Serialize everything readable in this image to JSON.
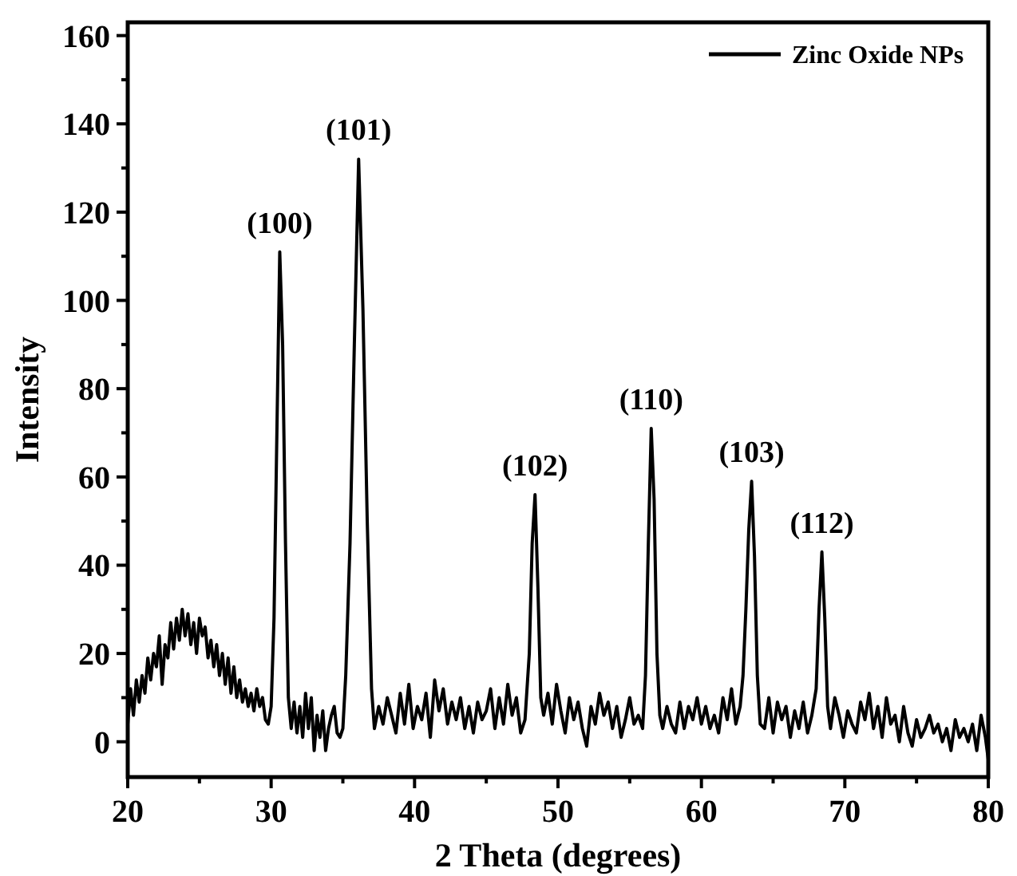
{
  "chart_data": {
    "type": "line",
    "xlabel": "2 Theta (degrees)",
    "ylabel": "Intensity",
    "xlim": [
      20,
      80
    ],
    "ylim": [
      -8,
      163
    ],
    "xticks": [
      20,
      {
        "value": 25,
        "label": null
      },
      30,
      {
        "value": 35,
        "label": null
      },
      40,
      {
        "value": 45,
        "label": null
      },
      50,
      {
        "value": 55,
        "label": null
      },
      60,
      {
        "value": 65,
        "label": null
      },
      70,
      {
        "value": 75,
        "label": null
      },
      80
    ],
    "yticks": [
      0,
      {
        "value": 10,
        "label": null
      },
      20,
      {
        "value": 30,
        "label": null
      },
      40,
      {
        "value": 50,
        "label": null
      },
      60,
      {
        "value": 70,
        "label": null
      },
      80,
      {
        "value": 90,
        "label": null
      },
      100,
      {
        "value": 110,
        "label": null
      },
      120,
      {
        "value": 130,
        "label": null
      },
      140,
      {
        "value": 150,
        "label": null
      },
      160
    ],
    "grid": false,
    "legend": "top right",
    "marker": "none",
    "line_style": "solid",
    "annotations": [
      {
        "text": "(100)",
        "x": 30.6,
        "y": 111
      },
      {
        "text": "(101)",
        "x": 36.1,
        "y": 132
      },
      {
        "text": "(102)",
        "x": 48.4,
        "y": 56
      },
      {
        "text": "(110)",
        "x": 56.5,
        "y": 71
      },
      {
        "text": "(103)",
        "x": 63.5,
        "y": 59
      },
      {
        "text": "(112)",
        "x": 68.4,
        "y": 43
      }
    ],
    "series": [
      {
        "name": "Zinc Oxide NPs",
        "color": "#000000",
        "x": [
          20,
          20.2,
          20.4,
          20.6,
          20.8,
          21,
          21.2,
          21.4,
          21.6,
          21.8,
          22,
          22.2,
          22.4,
          22.6,
          22.8,
          23,
          23.2,
          23.4,
          23.6,
          23.8,
          24,
          24.2,
          24.4,
          24.6,
          24.8,
          25,
          25.2,
          25.4,
          25.6,
          25.8,
          26,
          26.2,
          26.4,
          26.6,
          26.8,
          27,
          27.2,
          27.4,
          27.6,
          27.8,
          28,
          28.2,
          28.4,
          28.6,
          28.8,
          29,
          29.2,
          29.4,
          29.6,
          29.8,
          30,
          30.2,
          30.4,
          30.6,
          30.8,
          31,
          31.2,
          31.4,
          31.6,
          31.8,
          32,
          32.2,
          32.4,
          32.6,
          32.8,
          33,
          33.2,
          33.4,
          33.6,
          33.8,
          34,
          34.2,
          34.4,
          34.6,
          34.8,
          35,
          35.2,
          35.5,
          35.8,
          36.1,
          36.4,
          36.7,
          37,
          37.2,
          37.5,
          37.8,
          38.1,
          38.4,
          38.7,
          39,
          39.3,
          39.6,
          39.9,
          40.2,
          40.5,
          40.8,
          41.1,
          41.4,
          41.7,
          42,
          42.3,
          42.6,
          42.9,
          43.2,
          43.5,
          43.8,
          44.1,
          44.4,
          44.7,
          45,
          45.3,
          45.6,
          45.9,
          46.2,
          46.5,
          46.8,
          47.1,
          47.4,
          47.7,
          48,
          48.2,
          48.4,
          48.6,
          48.8,
          49,
          49.3,
          49.6,
          49.9,
          50.2,
          50.5,
          50.8,
          51.1,
          51.4,
          51.7,
          52,
          52.3,
          52.6,
          52.9,
          53.2,
          53.5,
          53.8,
          54.1,
          54.4,
          54.7,
          55,
          55.3,
          55.6,
          55.9,
          56.1,
          56.3,
          56.5,
          56.7,
          56.9,
          57.1,
          57.3,
          57.6,
          57.9,
          58.2,
          58.5,
          58.8,
          59.1,
          59.4,
          59.7,
          60,
          60.3,
          60.6,
          60.9,
          61.2,
          61.5,
          61.8,
          62.1,
          62.4,
          62.7,
          62.9,
          63.1,
          63.3,
          63.5,
          63.7,
          63.9,
          64.1,
          64.4,
          64.7,
          65,
          65.3,
          65.6,
          65.9,
          66.2,
          66.5,
          66.8,
          67.1,
          67.4,
          67.7,
          68,
          68.2,
          68.4,
          68.6,
          68.8,
          69,
          69.3,
          69.6,
          69.9,
          70.2,
          70.5,
          70.8,
          71.1,
          71.4,
          71.7,
          72,
          72.3,
          72.6,
          72.9,
          73.2,
          73.5,
          73.8,
          74.1,
          74.4,
          74.7,
          75,
          75.3,
          75.6,
          75.9,
          76.2,
          76.5,
          76.8,
          77.1,
          77.4,
          77.7,
          78,
          78.3,
          78.6,
          78.9,
          79.2,
          79.5,
          79.8,
          80
        ],
        "values": [
          4,
          12,
          6,
          14,
          9,
          15,
          11,
          19,
          14,
          20,
          17,
          24,
          13,
          22,
          19,
          27,
          21,
          28,
          23,
          30,
          24,
          29,
          22,
          27,
          20,
          28,
          24,
          26,
          19,
          23,
          17,
          22,
          15,
          20,
          13,
          19,
          11,
          17,
          10,
          14,
          9,
          12,
          8,
          11,
          7,
          12,
          8,
          10,
          5,
          4,
          8,
          28,
          70,
          111,
          90,
          45,
          10,
          3,
          9,
          2,
          8,
          1,
          11,
          3,
          10,
          -2,
          6,
          1,
          7,
          -2,
          3,
          6,
          8,
          2,
          1,
          3,
          15,
          45,
          90,
          132,
          98,
          50,
          12,
          3,
          8,
          4,
          10,
          6,
          2,
          11,
          4,
          13,
          3,
          8,
          5,
          11,
          1,
          14,
          7,
          12,
          4,
          9,
          5,
          10,
          3,
          8,
          2,
          9,
          5,
          7,
          12,
          3,
          10,
          4,
          13,
          6,
          10,
          2,
          5,
          20,
          45,
          56,
          35,
          10,
          6,
          11,
          4,
          13,
          7,
          2,
          10,
          5,
          9,
          3,
          -1,
          8,
          4,
          11,
          6,
          9,
          3,
          8,
          1,
          5,
          10,
          4,
          6,
          3,
          15,
          45,
          71,
          55,
          20,
          6,
          3,
          8,
          4,
          2,
          9,
          3,
          8,
          5,
          10,
          4,
          8,
          3,
          6,
          2,
          10,
          5,
          12,
          4,
          8,
          15,
          30,
          48,
          59,
          42,
          15,
          4,
          3,
          10,
          2,
          9,
          5,
          8,
          1,
          7,
          3,
          9,
          2,
          6,
          12,
          30,
          43,
          28,
          8,
          3,
          10,
          6,
          1,
          7,
          4,
          2,
          9,
          5,
          11,
          3,
          8,
          1,
          10,
          4,
          6,
          0,
          8,
          2,
          -1,
          5,
          1,
          3,
          6,
          2,
          4,
          0,
          3,
          -2,
          5,
          1,
          3,
          0,
          4,
          -2,
          6,
          1,
          -4
        ]
      }
    ]
  }
}
